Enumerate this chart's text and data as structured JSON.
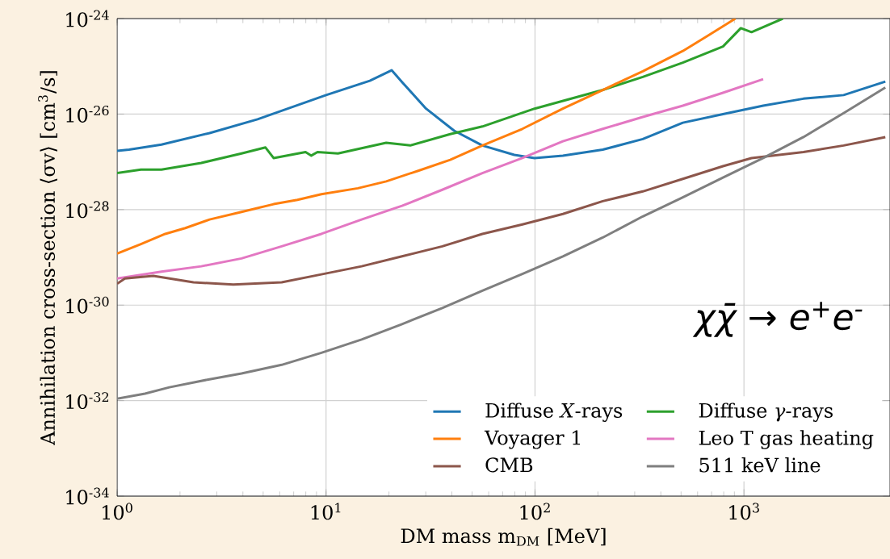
{
  "chart_data": {
    "type": "line",
    "xlabel": "DM mass m$_{DM}$ [MeV]",
    "ylabel": "Annihilation cross-section ⟨σv⟩ [cm$^{3}$/s]",
    "log": "xy",
    "grid": true,
    "legend": "bottom right",
    "marker": "none",
    "line_style": "solid",
    "xlim": [
      1,
      5000
    ],
    "ylim": [
      1e-34,
      1e-24
    ],
    "xticks": [
      {
        "value": 1,
        "label": "10$^{0}$"
      },
      {
        "value": 10,
        "label": "10$^{1}$"
      },
      {
        "value": 100,
        "label": "10$^{2}$"
      },
      {
        "value": 1000,
        "label": "10$^{3}$"
      }
    ],
    "yticks": [
      {
        "value": 1e-34,
        "label": "10$^{-34}$"
      },
      {
        "value": 1e-32,
        "label": "10$^{-32}$"
      },
      {
        "value": 1e-30,
        "label": "10$^{-30}$"
      },
      {
        "value": 1e-28,
        "label": "10$^{-28}$"
      },
      {
        "value": 1e-26,
        "label": "10$^{-26}$"
      },
      {
        "value": 1e-24,
        "label": "10$^{-24}$"
      }
    ],
    "annotations": [
      "χχ̄ → e$^{+}$e$^{-}$"
    ],
    "series": [
      {
        "name": "Diffuse *X*-rays",
        "color": "#1f77b4",
        "x": [
          1,
          1.14,
          1.63,
          2.77,
          4.7,
          10,
          16.2,
          20.6,
          23.1,
          30.1,
          41,
          56,
          79.6,
          99.5,
          136,
          211,
          328,
          510,
          794,
          1236,
          1926,
          2999,
          4750
        ],
        "values": [
          1.7e-27,
          1.8e-27,
          2.3e-27,
          4e-27,
          7.8e-27,
          2.5e-26,
          5e-26,
          8.3e-26,
          4.7e-26,
          1.3e-26,
          4.5e-27,
          2.2e-27,
          1.4e-27,
          1.2e-27,
          1.35e-27,
          1.8e-27,
          3e-27,
          6.6e-27,
          1e-26,
          1.5e-26,
          2.1e-26,
          2.5e-26,
          4.8e-26
        ]
      },
      {
        "name": "Diffuse *γ*-rays",
        "color": "#2ca02c",
        "x": [
          1,
          1.3,
          1.63,
          2.53,
          3.94,
          5.13,
          5.61,
          7.98,
          8.5,
          9.1,
          11.4,
          19.4,
          25.3,
          39.3,
          56,
          99.5,
          211,
          328,
          510,
          794,
          966,
          1087,
          1536
        ],
        "values": [
          5.8e-28,
          6.9e-28,
          6.9e-28,
          9.5e-28,
          1.5e-27,
          2e-27,
          1.2e-27,
          1.6e-27,
          1.35e-27,
          1.6e-27,
          1.5e-27,
          2.5e-27,
          2.2e-27,
          3.8e-27,
          5.5e-27,
          1.3e-26,
          3.2e-26,
          6e-26,
          1.2e-25,
          2.6e-25,
          6.3e-25,
          5.2e-25,
          1e-24
        ]
      },
      {
        "name": "Voyager 1",
        "color": "#ff7f0e",
        "x": [
          1,
          1.3,
          1.7,
          2.12,
          2.77,
          3.94,
          5.61,
          7.3,
          9.5,
          14.2,
          19.4,
          27.6,
          39.3,
          56,
          87,
          136,
          211,
          328,
          510,
          667,
          910
        ],
        "values": [
          1.2e-29,
          1.9e-29,
          3.1e-29,
          4.1e-29,
          6.2e-29,
          8.9e-29,
          1.3e-28,
          1.6e-28,
          2.1e-28,
          2.8e-28,
          3.9e-28,
          6.5e-28,
          1.1e-27,
          2.2e-27,
          4.9e-27,
          1.3e-26,
          3.2e-26,
          7.9e-26,
          2.1e-25,
          4.3e-25,
          1e-24
        ]
      },
      {
        "name": "Leo T gas heating",
        "color": "#e377c2",
        "x": [
          1,
          1.63,
          2.53,
          3.94,
          6.13,
          9.5,
          14.8,
          23.1,
          36,
          56,
          87,
          136,
          211,
          328,
          510,
          794,
          1236
        ],
        "values": [
          3.6e-30,
          5e-30,
          6.5e-30,
          9.5e-30,
          1.7e-29,
          3.1e-29,
          6.2e-29,
          1.2e-28,
          2.6e-28,
          5.8e-28,
          1.2e-27,
          2.7e-27,
          4.9e-27,
          8.7e-27,
          1.5e-26,
          2.8e-26,
          5.4e-26
        ]
      },
      {
        "name": "CMB",
        "color": "#8c564b",
        "x": [
          1,
          1.09,
          1.49,
          2.32,
          3.6,
          6.13,
          9.5,
          14.8,
          23.1,
          36,
          56,
          87,
          136,
          211,
          328,
          510,
          794,
          1087,
          1926,
          2999,
          4750
        ],
        "values": [
          2.8e-30,
          3.6e-30,
          4.1e-30,
          3e-30,
          2.7e-30,
          3e-30,
          4.4e-30,
          6.5e-30,
          1.05e-29,
          1.7e-29,
          3.1e-29,
          4.9e-29,
          8.1e-29,
          1.5e-28,
          2.4e-28,
          4.4e-28,
          8.1e-28,
          1.2e-27,
          1.6e-27,
          2.2e-27,
          3.3e-27
        ]
      },
      {
        "name": "511 keV line",
        "color": "#7f7f7f",
        "x": [
          1,
          1.36,
          1.78,
          2.77,
          3.94,
          6.13,
          9.5,
          14.8,
          23.1,
          36,
          56,
          87,
          136,
          211,
          328,
          510,
          794,
          1236,
          1926,
          2999,
          4750
        ],
        "values": [
          1.1e-32,
          1.4e-32,
          1.9e-32,
          2.8e-32,
          3.7e-32,
          5.6e-32,
          1e-31,
          1.9e-31,
          4e-31,
          8.7e-31,
          2e-30,
          4.5e-30,
          1.05e-29,
          2.6e-29,
          7.2e-29,
          1.8e-28,
          4.7e-28,
          1.2e-27,
          3.3e-27,
          1.05e-26,
          3.6e-26
        ]
      }
    ]
  }
}
